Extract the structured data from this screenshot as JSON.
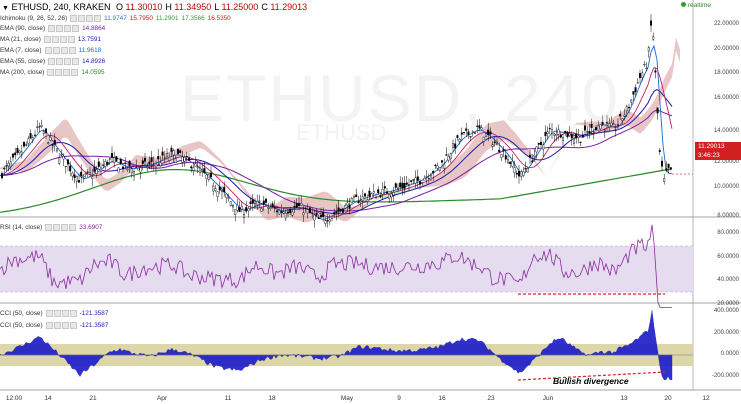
{
  "header": {
    "symbol": "ETHUSD, 240, KRAKEN",
    "ohlc": [
      {
        "k": "O",
        "v": "11.30010"
      },
      {
        "k": "H",
        "v": "11.34950"
      },
      {
        "k": "L",
        "v": "11.25000"
      },
      {
        "k": "C",
        "v": "11.29013"
      }
    ]
  },
  "realtime_label": "realtime",
  "watermark": "ETHUSD, 240",
  "watermark_sub": "ETHUSD",
  "indicators_main": [
    {
      "label": "Ichimoku (9, 26, 52, 26)",
      "values": [
        {
          "v": "11.9747",
          "color": "#2a6fd6"
        },
        {
          "v": "15.7950",
          "color": "#c02020"
        },
        {
          "v": "11.2901",
          "color": "#2a9a2a"
        },
        {
          "v": "17.3566",
          "color": "#2a9a2a"
        },
        {
          "v": "16.5350",
          "color": "#c02020"
        }
      ]
    },
    {
      "label": "EMA (90, close)",
      "values": [
        {
          "v": "14.8864",
          "color": "#7a1fa2"
        }
      ]
    },
    {
      "label": "MA (21, close)",
      "values": [
        {
          "v": "13.7591",
          "color": "#1a1ab0"
        }
      ]
    },
    {
      "label": "EMA (7, close)",
      "values": [
        {
          "v": "11.9618",
          "color": "#1a6ad0"
        }
      ]
    },
    {
      "label": "EMA (55, close)",
      "values": [
        {
          "v": "14.8926",
          "color": "#1a1ab0"
        }
      ]
    },
    {
      "label": "MA (200, close)",
      "values": [
        {
          "v": "14.0595",
          "color": "#2a8a2a"
        }
      ]
    }
  ],
  "rsi": {
    "label": "RSI (14, close)",
    "value": "33.6907",
    "color": "#8a2aa0"
  },
  "cci": [
    {
      "label": "CCI (50, close)",
      "value": "-121.3587",
      "color": "#1a1ab0"
    },
    {
      "label": "CCI (50, close)",
      "value": "-121.3587",
      "color": "#1a1ab0"
    }
  ],
  "price_axis": [
    "22.00000",
    "20.00000",
    "18.00000",
    "16.00000",
    "14.00000",
    "12.00000",
    "10.00000",
    "8.00000"
  ],
  "price_tags": [
    {
      "v": "11.29013",
      "color": "#d02020"
    },
    {
      "v": "3:46:23",
      "color": "#d02020"
    }
  ],
  "rsi_axis": [
    "80.0000",
    "60.0000",
    "40.0000",
    "20.0000"
  ],
  "cci_axis": [
    "400.0000",
    "200.0000",
    "0.0000",
    "-200.0000"
  ],
  "x_axis": [
    "12:00",
    "14",
    "21",
    "Apr",
    "11",
    "18",
    "May",
    "9",
    "16",
    "23",
    "Jun",
    "13",
    "20",
    "12"
  ],
  "annotation": "Bullish divergence",
  "colors": {
    "candle_up": "#000000",
    "candle_down": "#000000",
    "ma200": "#2a8a2a",
    "ema90": "#7a1fa2",
    "cloud_red": "#d8a0a0",
    "cloud_green": "#a8d8a8",
    "rsi_band": "#e6dcf0",
    "cci_band": "#ddd6a8",
    "cci_fill": "#1a1ac8",
    "divergence": "#e02020"
  }
}
